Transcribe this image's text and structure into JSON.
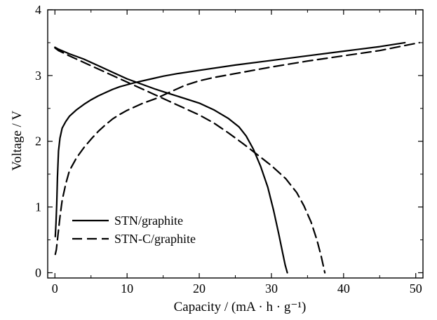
{
  "chart_data": {
    "type": "line",
    "title": "",
    "xlabel": "Capacity / (mA · h · g⁻¹)",
    "ylabel": "Voltage / V",
    "xlim": [
      -1,
      51
    ],
    "ylim": [
      -0.08,
      4.0
    ],
    "xticks": [
      0,
      10,
      20,
      30,
      40,
      50
    ],
    "yticks": [
      0,
      1,
      2,
      3,
      4
    ],
    "grid": false,
    "legend_position": "bottom-left",
    "series": [
      {
        "name": "STN/graphite",
        "style": "solid",
        "color": "#000000",
        "charge": [
          [
            0.05,
            0.55
          ],
          [
            0.15,
            0.75
          ],
          [
            0.25,
            1.05
          ],
          [
            0.35,
            1.45
          ],
          [
            0.5,
            1.85
          ],
          [
            0.7,
            2.05
          ],
          [
            1.0,
            2.2
          ],
          [
            1.5,
            2.3
          ],
          [
            2.0,
            2.38
          ],
          [
            3.0,
            2.48
          ],
          [
            4.0,
            2.56
          ],
          [
            5.0,
            2.63
          ],
          [
            6.0,
            2.69
          ],
          [
            7.0,
            2.74
          ],
          [
            8.0,
            2.79
          ],
          [
            9.0,
            2.83
          ],
          [
            10.0,
            2.86
          ],
          [
            11.0,
            2.89
          ],
          [
            13.0,
            2.94
          ],
          [
            15.0,
            2.99
          ],
          [
            17.0,
            3.03
          ],
          [
            20.0,
            3.08
          ],
          [
            25.0,
            3.16
          ],
          [
            30.0,
            3.23
          ],
          [
            35.0,
            3.3
          ],
          [
            40.0,
            3.37
          ],
          [
            45.0,
            3.44
          ],
          [
            48.5,
            3.5
          ]
        ],
        "discharge": [
          [
            48.5,
            3.5
          ],
          [
            45.0,
            3.44
          ],
          [
            40.0,
            3.37
          ],
          [
            35.0,
            3.3
          ],
          [
            30.0,
            3.23
          ],
          [
            25.0,
            3.16
          ],
          [
            20.0,
            3.08
          ],
          [
            16.0,
            3.01
          ],
          [
            13.0,
            2.95
          ],
          [
            11.0,
            2.9
          ]
        ],
        "discharge_curve": [
          [
            0.0,
            3.43
          ],
          [
            0.5,
            3.4
          ],
          [
            2.0,
            3.33
          ],
          [
            4.0,
            3.25
          ],
          [
            6.0,
            3.15
          ],
          [
            8.0,
            3.05
          ],
          [
            10.0,
            2.95
          ],
          [
            12.0,
            2.87
          ],
          [
            14.0,
            2.79
          ],
          [
            16.0,
            2.72
          ],
          [
            18.0,
            2.65
          ],
          [
            20.0,
            2.58
          ],
          [
            22.0,
            2.48
          ],
          [
            24.0,
            2.35
          ],
          [
            25.5,
            2.22
          ],
          [
            26.5,
            2.08
          ],
          [
            27.5,
            1.88
          ],
          [
            28.5,
            1.62
          ],
          [
            29.5,
            1.3
          ],
          [
            30.3,
            0.95
          ],
          [
            31.0,
            0.6
          ],
          [
            31.5,
            0.33
          ],
          [
            31.9,
            0.12
          ],
          [
            32.2,
            0.0
          ]
        ]
      },
      {
        "name": "STN-C/graphite",
        "style": "dashed",
        "color": "#000000",
        "charge": [
          [
            0.05,
            0.28
          ],
          [
            0.2,
            0.35
          ],
          [
            0.4,
            0.55
          ],
          [
            0.7,
            0.85
          ],
          [
            1.0,
            1.1
          ],
          [
            1.5,
            1.35
          ],
          [
            2.0,
            1.55
          ],
          [
            3.0,
            1.75
          ],
          [
            4.0,
            1.9
          ],
          [
            5.0,
            2.03
          ],
          [
            6.0,
            2.15
          ],
          [
            7.0,
            2.25
          ],
          [
            8.0,
            2.34
          ],
          [
            9.0,
            2.41
          ],
          [
            10.0,
            2.47
          ],
          [
            12.0,
            2.57
          ],
          [
            14.0,
            2.65
          ],
          [
            16.0,
            2.75
          ],
          [
            18.0,
            2.85
          ],
          [
            20.0,
            2.92
          ],
          [
            22.0,
            2.97
          ],
          [
            25.0,
            3.03
          ],
          [
            30.0,
            3.13
          ],
          [
            35.0,
            3.22
          ],
          [
            40.0,
            3.3
          ],
          [
            45.0,
            3.38
          ],
          [
            50.5,
            3.5
          ]
        ],
        "discharge_curve": [
          [
            0.0,
            3.42
          ],
          [
            0.5,
            3.38
          ],
          [
            2.0,
            3.3
          ],
          [
            4.0,
            3.2
          ],
          [
            6.0,
            3.1
          ],
          [
            8.0,
            3.0
          ],
          [
            10.0,
            2.9
          ],
          [
            12.0,
            2.8
          ],
          [
            14.0,
            2.7
          ],
          [
            16.0,
            2.6
          ],
          [
            18.0,
            2.5
          ],
          [
            20.0,
            2.4
          ],
          [
            22.0,
            2.28
          ],
          [
            24.0,
            2.13
          ],
          [
            26.0,
            1.97
          ],
          [
            28.0,
            1.8
          ],
          [
            30.0,
            1.63
          ],
          [
            32.0,
            1.43
          ],
          [
            33.5,
            1.22
          ],
          [
            34.5,
            1.02
          ],
          [
            35.5,
            0.77
          ],
          [
            36.3,
            0.5
          ],
          [
            36.9,
            0.25
          ],
          [
            37.4,
            0.0
          ]
        ]
      }
    ]
  }
}
